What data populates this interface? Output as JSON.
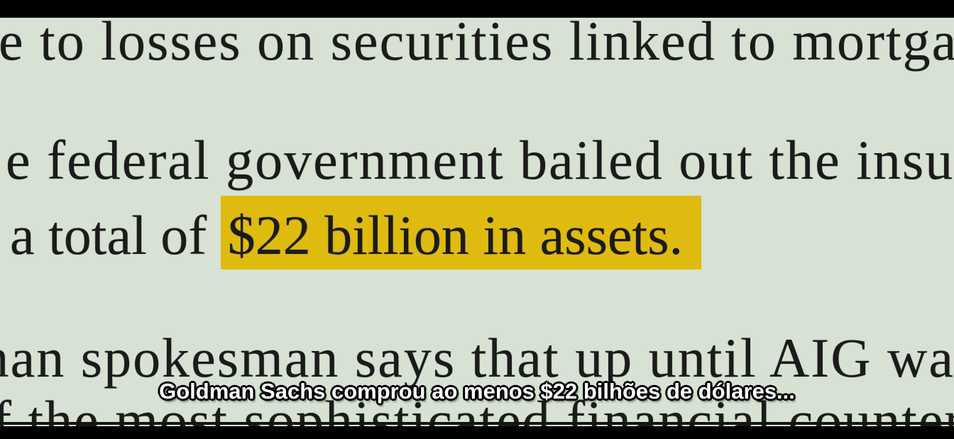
{
  "scene": {
    "description": "video frame of a zoomed newspaper article with letterbox bars and a burned-in subtitle",
    "colors": {
      "page-bg": "#d7e2d4",
      "letterbox": "#000000",
      "ink": "#1b1b1b",
      "highlight": "#dfbb10",
      "subtitle-fill": "#ffffff"
    }
  },
  "document": {
    "lines": {
      "line1": "e to losses on securities linked to mortgage",
      "line2": "e federal government bailed out the insur",
      "line3_prefix": "a total of ",
      "line3_highlight": "$22 billion in assets.",
      "line4": "man spokesman says that up until AIG was",
      "line5": "f the most sophisticated financial counterp"
    }
  },
  "subtitle": {
    "text": "Goldman Sachs comprou ao menos $22 bilhões de dólares..."
  }
}
